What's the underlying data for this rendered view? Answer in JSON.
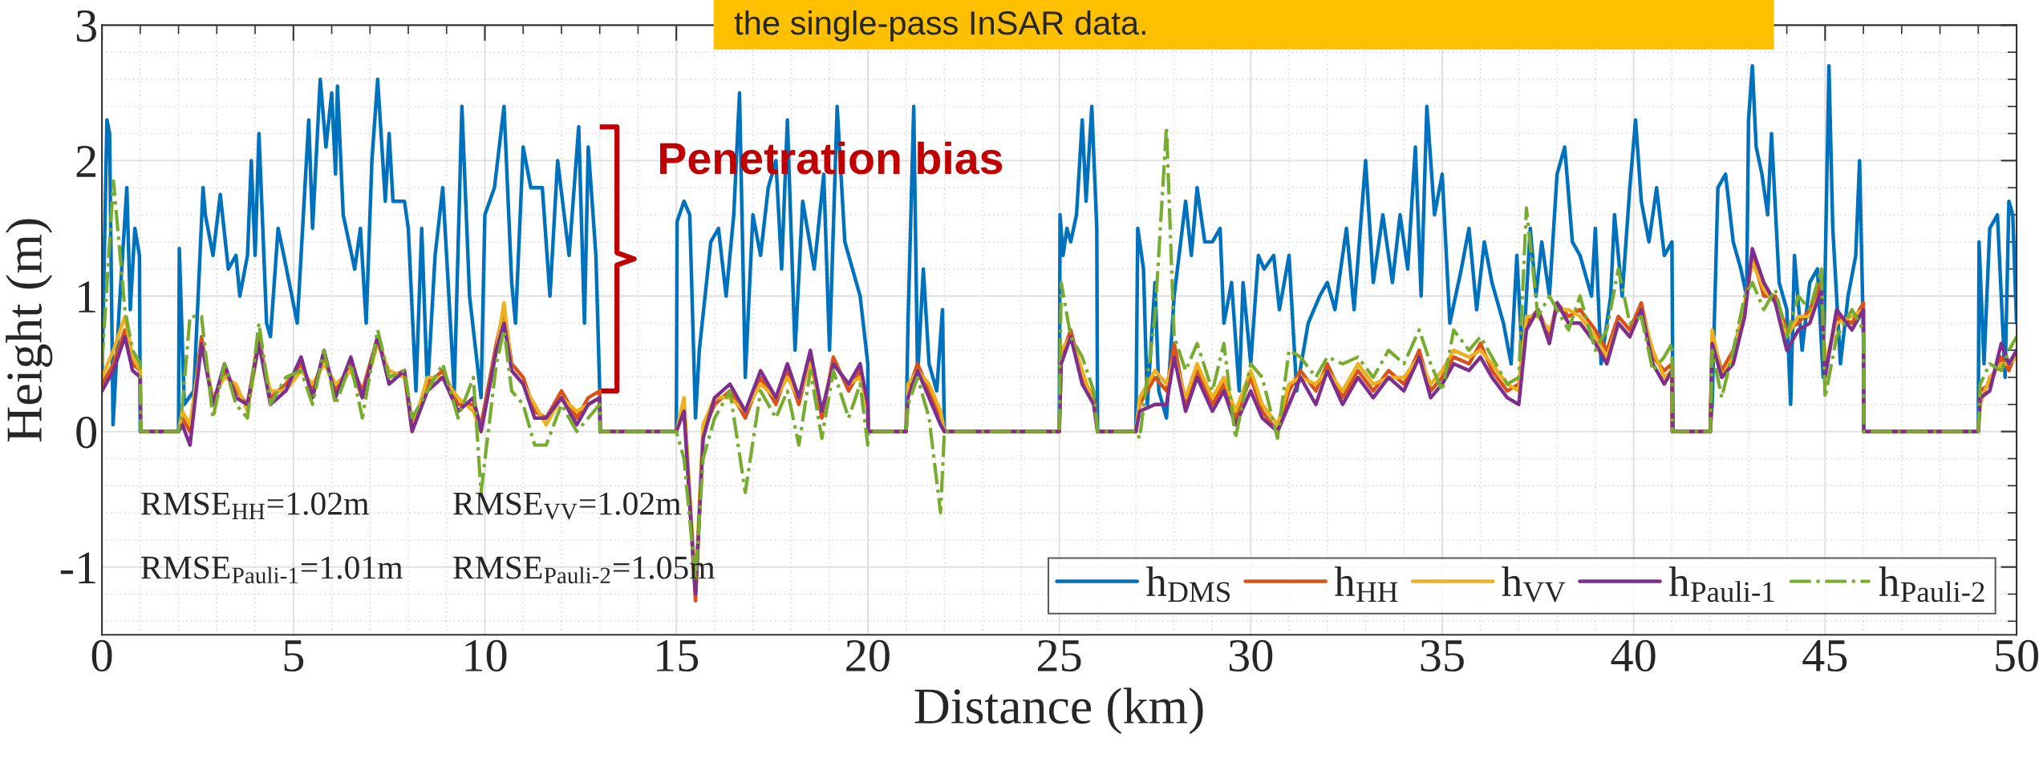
{
  "chart_data": {
    "type": "line",
    "xlabel": "Distance (km)",
    "ylabel": "Height (m)",
    "xlim": [
      0,
      50
    ],
    "ylim": [
      -1.5,
      3
    ],
    "xticks": [
      0,
      5,
      10,
      15,
      20,
      25,
      30,
      35,
      40,
      45,
      50
    ],
    "yticks": [
      {
        "value": -1,
        "label": "-1"
      },
      0,
      1,
      2,
      3
    ],
    "grid": true,
    "legend": "bottom right",
    "marker": "none",
    "annotations": [
      "the single-pass InSAR data.",
      "Penetration bias",
      "RMSE$_{HH}$=1.02m",
      "RMSE$_{VV}$=1.02m",
      "RMSE$_{Pauli-1}$=1.01m",
      "RMSE$_{Pauli-2}$=1.05m"
    ],
    "series": [
      {
        "name": "h$_{DMS}$",
        "color": "#0072bd",
        "line_style": "solid",
        "x": [
          0,
          0.13,
          0.2,
          0.29,
          0.45,
          0.65,
          0.74,
          0.86,
          0.98,
          1.0,
          2.0,
          2.02,
          2.15,
          2.4,
          2.64,
          2.7,
          2.9,
          3.09,
          3.3,
          3.5,
          3.6,
          3.8,
          3.9,
          4.0,
          4.1,
          4.3,
          4.4,
          4.6,
          4.75,
          5.1,
          5.4,
          5.5,
          5.7,
          5.85,
          6.0,
          6.1,
          6.15,
          6.3,
          6.6,
          6.75,
          6.9,
          7.05,
          7.2,
          7.4,
          7.5,
          7.6,
          7.9,
          8.0,
          8.2,
          8.35,
          8.5,
          8.7,
          8.9,
          9.2,
          9.4,
          9.6,
          9.9,
          10.0,
          10.25,
          10.5,
          10.7,
          10.8,
          11.0,
          11.2,
          11.5,
          11.7,
          11.9,
          12.2,
          12.45,
          12.6,
          12.7,
          12.9,
          13.0,
          13.01,
          15.0,
          15.02,
          15.2,
          15.35,
          15.5,
          15.6,
          15.9,
          16.1,
          16.3,
          16.5,
          16.65,
          16.8,
          17.0,
          17.2,
          17.4,
          17.6,
          17.75,
          17.9,
          18.1,
          18.3,
          18.6,
          18.85,
          19.0,
          19.2,
          19.4,
          19.6,
          19.8,
          20.0,
          20.01,
          21.0,
          21.05,
          21.2,
          21.3,
          21.45,
          21.6,
          21.8,
          21.95,
          22.0,
          25.0,
          25.02,
          25.1,
          25.2,
          25.3,
          25.45,
          25.6,
          25.7,
          25.85,
          25.98,
          26.0,
          27.0,
          27.05,
          27.2,
          27.3,
          27.5,
          27.6,
          27.8,
          28.0,
          28.3,
          28.45,
          28.6,
          28.8,
          29.0,
          29.2,
          29.3,
          29.5,
          29.7,
          29.8,
          30.0,
          30.2,
          30.35,
          30.6,
          30.75,
          31.0,
          31.2,
          31.5,
          31.8,
          32.0,
          32.2,
          32.5,
          32.7,
          33.0,
          33.2,
          33.45,
          33.7,
          33.9,
          34.1,
          34.3,
          34.45,
          34.6,
          34.8,
          35.0,
          35.2,
          35.5,
          35.7,
          35.9,
          36.1,
          36.3,
          36.6,
          36.8,
          36.95,
          37.1,
          37.3,
          37.45,
          37.6,
          37.8,
          38.0,
          38.2,
          38.4,
          38.6,
          38.9,
          39.0,
          39.15,
          39.4,
          39.5,
          39.7,
          39.9,
          40.05,
          40.2,
          40.4,
          40.6,
          40.8,
          41.0,
          41.02,
          41.03,
          42.0,
          42.05,
          42.2,
          42.4,
          42.6,
          42.8,
          42.95,
          43.0,
          43.1,
          43.2,
          43.35,
          43.5,
          43.6,
          43.8,
          44.0,
          44.1,
          44.2,
          44.4,
          44.6,
          44.8,
          44.95,
          45.1,
          45.2,
          45.4,
          45.6,
          45.8,
          45.9,
          46.0,
          46.01,
          49.0,
          49.02,
          49.15,
          49.3,
          49.5,
          49.7,
          49.8,
          49.9,
          50
        ],
        "values": [
          0.39,
          2.3,
          2.2,
          0.05,
          0.9,
          1.8,
          0.9,
          1.5,
          1.3,
          0,
          0,
          1.35,
          0.2,
          0.3,
          1.8,
          1.6,
          1.3,
          1.75,
          1.2,
          1.3,
          1.0,
          1.3,
          2.0,
          1.3,
          2.2,
          0.8,
          0.7,
          1.5,
          1.3,
          0.8,
          2.3,
          1.5,
          2.6,
          2.1,
          2.5,
          1.9,
          2.55,
          1.6,
          1.2,
          1.5,
          0.8,
          2.0,
          2.6,
          1.7,
          2.2,
          1.7,
          1.7,
          1.5,
          0.3,
          1.5,
          0.3,
          1.3,
          1.8,
          0.3,
          2.4,
          1.0,
          0.25,
          1.6,
          1.8,
          2.4,
          1.1,
          0.8,
          2.1,
          1.8,
          1.8,
          1.0,
          2.0,
          1.3,
          2.25,
          0.8,
          2.1,
          1.3,
          0.3,
          0,
          0,
          1.55,
          1.7,
          1.6,
          0.1,
          0.6,
          1.4,
          1.5,
          1.0,
          1.6,
          2.5,
          0.4,
          1.6,
          1.3,
          1.8,
          2.0,
          1.2,
          2.3,
          0.6,
          1.7,
          1.2,
          1.9,
          0.6,
          2.4,
          1.4,
          1.2,
          1.0,
          0.5,
          0,
          0,
          0.8,
          2.4,
          0.4,
          1.2,
          0.5,
          0.3,
          0.9,
          0,
          0,
          1.6,
          1.3,
          1.5,
          1.4,
          1.6,
          2.3,
          1.7,
          2.4,
          1.5,
          0,
          0,
          1.5,
          1.2,
          0.2,
          1.1,
          0.3,
          0.1,
          1.0,
          1.7,
          1.3,
          1.8,
          1.4,
          1.4,
          1.5,
          0.8,
          1.1,
          0.3,
          1.1,
          0.5,
          1.3,
          1.2,
          1.3,
          0.9,
          1.3,
          0.3,
          0.8,
          1.0,
          1.1,
          0.9,
          1.5,
          0.9,
          2.0,
          1.1,
          1.6,
          1.1,
          1.6,
          1.2,
          2.1,
          1.0,
          2.4,
          1.6,
          1.9,
          0.8,
          1.2,
          1.5,
          0.9,
          1.4,
          1.1,
          0.8,
          0.5,
          1.3,
          0.5,
          1.5,
          1.0,
          1.4,
          1.0,
          1.9,
          2.1,
          1.4,
          1.3,
          1.0,
          1.5,
          0.5,
          1.0,
          1.6,
          1.0,
          1.8,
          2.3,
          1.7,
          1.4,
          1.8,
          1.3,
          1.4,
          0.4,
          0,
          0,
          0.2,
          1.8,
          1.9,
          1.4,
          1.2,
          1.0,
          2.3,
          2.7,
          2.1,
          1.9,
          1.6,
          2.2,
          1.1,
          0.9,
          0.2,
          1.3,
          0.6,
          1.1,
          1.2,
          0.4,
          2.7,
          1.5,
          0.5,
          1.0,
          1.3,
          2.0,
          0.7,
          0,
          0,
          1.4,
          0.5,
          1.5,
          1.6,
          0.4,
          1.7,
          1.6,
          0.8
        ]
      },
      {
        "name": "h$_{HH}$",
        "color": "#d95319",
        "line_style": "solid",
        "x": [
          0,
          0.3,
          0.6,
          0.8,
          1.0,
          1.01,
          2.0,
          2.1,
          2.3,
          2.6,
          2.9,
          3.2,
          3.5,
          3.8,
          4.1,
          4.4,
          4.8,
          5.2,
          5.5,
          5.8,
          6.1,
          6.5,
          6.8,
          7.2,
          7.5,
          7.9,
          8.1,
          8.5,
          8.9,
          9.3,
          9.7,
          9.9,
          10.3,
          10.5,
          10.7,
          11.0,
          11.3,
          11.6,
          12.0,
          12.4,
          12.7,
          13.0,
          13.01,
          15.0,
          15.2,
          15.5,
          15.7,
          16.0,
          16.4,
          16.8,
          17.2,
          17.6,
          17.9,
          18.2,
          18.5,
          18.8,
          19.1,
          19.5,
          19.8,
          20.0,
          20.01,
          21.0,
          21.05,
          21.3,
          21.6,
          21.9,
          22.0,
          25.0,
          25.05,
          25.3,
          25.6,
          25.9,
          26.0,
          27.0,
          27.1,
          27.5,
          27.8,
          28.0,
          28.3,
          28.6,
          29.0,
          29.3,
          29.6,
          30.0,
          30.3,
          30.7,
          31.0,
          31.3,
          31.7,
          32.0,
          32.4,
          32.8,
          33.2,
          33.6,
          34.0,
          34.4,
          34.7,
          35.0,
          35.3,
          35.7,
          36.0,
          36.3,
          36.7,
          37.0,
          37.2,
          37.5,
          37.8,
          38.0,
          38.3,
          38.6,
          39.0,
          39.3,
          39.6,
          39.9,
          40.2,
          40.5,
          40.8,
          41.0,
          41.01,
          42.0,
          42.05,
          42.3,
          42.6,
          42.9,
          43.1,
          43.4,
          43.7,
          44.0,
          44.3,
          44.6,
          44.9,
          45.0,
          45.3,
          45.7,
          46.0,
          46.01,
          49.0,
          49.05,
          49.3,
          49.6,
          49.8,
          50
        ],
        "values": [
          0.35,
          0.5,
          0.75,
          0.5,
          0.45,
          0,
          0,
          0.1,
          0.0,
          0.7,
          0.2,
          0.45,
          0.3,
          0.2,
          0.7,
          0.25,
          0.35,
          0.5,
          0.3,
          0.55,
          0.3,
          0.5,
          0.3,
          0.7,
          0.4,
          0.45,
          0.05,
          0.35,
          0.45,
          0.2,
          0.2,
          0.05,
          0.65,
          0.9,
          0.5,
          0.4,
          0.15,
          0.1,
          0.3,
          0.1,
          0.25,
          0.3,
          0,
          0,
          0.2,
          -1.25,
          0.0,
          0.2,
          0.3,
          0.1,
          0.4,
          0.2,
          0.45,
          0.2,
          0.55,
          0.1,
          0.55,
          0.3,
          0.45,
          0.2,
          0,
          0,
          0.3,
          0.5,
          0.3,
          0.1,
          0,
          0,
          0.55,
          0.75,
          0.4,
          0.25,
          0,
          0,
          0.2,
          0.4,
          0.3,
          0.65,
          0.2,
          0.45,
          0.2,
          0.35,
          0.1,
          0.4,
          0.15,
          0.0,
          0.3,
          0.45,
          0.3,
          0.5,
          0.25,
          0.45,
          0.3,
          0.45,
          0.35,
          0.6,
          0.3,
          0.4,
          0.55,
          0.5,
          0.65,
          0.45,
          0.3,
          0.35,
          0.8,
          0.9,
          0.7,
          0.95,
          0.85,
          0.9,
          0.75,
          0.6,
          0.85,
          0.75,
          0.95,
          0.55,
          0.45,
          0.5,
          0,
          0,
          0.7,
          0.45,
          0.6,
          0.9,
          1.3,
          1.0,
          1.0,
          0.75,
          0.8,
          0.9,
          1.1,
          0.45,
          0.85,
          0.8,
          0.95,
          0,
          0,
          0.3,
          0.35,
          0.55,
          0.45,
          0.6
        ]
      },
      {
        "name": "h$_{VV}$",
        "color": "#edb120",
        "line_style": "solid",
        "x": [
          0,
          0.3,
          0.6,
          0.8,
          1.0,
          1.01,
          2.0,
          2.1,
          2.3,
          2.6,
          2.9,
          3.2,
          3.5,
          3.8,
          4.1,
          4.4,
          4.8,
          5.2,
          5.5,
          5.8,
          6.1,
          6.5,
          6.8,
          7.2,
          7.5,
          7.9,
          8.1,
          8.5,
          8.9,
          9.3,
          9.7,
          9.9,
          10.3,
          10.5,
          10.7,
          11.0,
          11.3,
          11.6,
          12.0,
          12.4,
          12.7,
          13.0,
          13.01,
          15.0,
          15.2,
          15.5,
          15.7,
          16.0,
          16.4,
          16.8,
          17.2,
          17.6,
          17.9,
          18.2,
          18.5,
          18.8,
          19.1,
          19.5,
          19.8,
          20.0,
          20.01,
          21.0,
          21.05,
          21.3,
          21.6,
          21.9,
          22.0,
          25.0,
          25.05,
          25.3,
          25.6,
          25.9,
          26.0,
          27.0,
          27.1,
          27.5,
          27.8,
          28.0,
          28.3,
          28.6,
          29.0,
          29.3,
          29.6,
          30.0,
          30.3,
          30.7,
          31.0,
          31.3,
          31.7,
          32.0,
          32.4,
          32.8,
          33.2,
          33.6,
          34.0,
          34.4,
          34.7,
          35.0,
          35.3,
          35.7,
          36.0,
          36.3,
          36.7,
          37.0,
          37.2,
          37.5,
          37.8,
          38.0,
          38.3,
          38.6,
          39.0,
          39.3,
          39.6,
          39.9,
          40.2,
          40.5,
          40.8,
          41.0,
          41.01,
          42.0,
          42.05,
          42.3,
          42.6,
          42.9,
          43.1,
          43.4,
          43.7,
          44.0,
          44.3,
          44.6,
          44.9,
          45.0,
          45.3,
          45.7,
          46.0,
          46.01,
          49.0,
          49.05,
          49.3,
          49.6,
          49.8,
          50
        ],
        "values": [
          0.4,
          0.6,
          0.85,
          0.55,
          0.45,
          0,
          0,
          0.15,
          0.05,
          0.65,
          0.25,
          0.4,
          0.35,
          0.15,
          0.65,
          0.3,
          0.3,
          0.45,
          0.35,
          0.5,
          0.35,
          0.45,
          0.25,
          0.65,
          0.45,
          0.4,
          0.0,
          0.4,
          0.4,
          0.25,
          0.15,
          0.0,
          0.6,
          0.95,
          0.45,
          0.35,
          0.2,
          0.05,
          0.25,
          0.15,
          0.2,
          0.25,
          0,
          0,
          0.25,
          -1.15,
          0.05,
          0.25,
          0.25,
          0.15,
          0.35,
          0.25,
          0.4,
          0.25,
          0.5,
          0.15,
          0.5,
          0.35,
          0.4,
          0.15,
          0,
          0,
          0.35,
          0.45,
          0.35,
          0.15,
          0,
          0,
          0.6,
          0.7,
          0.45,
          0.2,
          0,
          0,
          0.25,
          0.45,
          0.35,
          0.55,
          0.25,
          0.5,
          0.25,
          0.4,
          0.15,
          0.45,
          0.2,
          0.05,
          0.35,
          0.4,
          0.35,
          0.45,
          0.3,
          0.5,
          0.35,
          0.4,
          0.4,
          0.55,
          0.35,
          0.45,
          0.6,
          0.55,
          0.6,
          0.5,
          0.35,
          0.3,
          0.85,
          0.85,
          0.75,
          0.9,
          0.9,
          0.85,
          0.7,
          0.55,
          0.8,
          0.7,
          0.9,
          0.6,
          0.4,
          0.45,
          0,
          0,
          0.75,
          0.4,
          0.55,
          0.95,
          1.25,
          1.05,
          0.95,
          0.7,
          0.85,
          0.85,
          1.05,
          0.5,
          0.8,
          0.85,
          0.9,
          0,
          0,
          0.2,
          0.4,
          0.5,
          0.5,
          0.55
        ]
      },
      {
        "name": "h$_{Pauli-1}$",
        "color": "#7e2f8e",
        "line_style": "solid",
        "x": [
          0,
          0.3,
          0.6,
          0.8,
          1.0,
          1.01,
          2.0,
          2.1,
          2.3,
          2.6,
          2.9,
          3.2,
          3.5,
          3.8,
          4.1,
          4.4,
          4.8,
          5.2,
          5.5,
          5.8,
          6.1,
          6.5,
          6.8,
          7.2,
          7.5,
          7.9,
          8.1,
          8.5,
          8.9,
          9.3,
          9.7,
          9.9,
          10.3,
          10.5,
          10.7,
          11.0,
          11.3,
          11.6,
          12.0,
          12.4,
          12.7,
          13.0,
          13.01,
          15.0,
          15.2,
          15.5,
          15.7,
          16.0,
          16.4,
          16.8,
          17.2,
          17.6,
          17.9,
          18.2,
          18.5,
          18.8,
          19.1,
          19.5,
          19.8,
          20.0,
          20.01,
          21.0,
          21.05,
          21.3,
          21.6,
          21.9,
          22.0,
          25.0,
          25.05,
          25.3,
          25.6,
          25.9,
          26.0,
          27.0,
          27.1,
          27.5,
          27.8,
          28.0,
          28.3,
          28.6,
          29.0,
          29.3,
          29.6,
          30.0,
          30.3,
          30.7,
          31.0,
          31.3,
          31.7,
          32.0,
          32.4,
          32.8,
          33.2,
          33.6,
          34.0,
          34.4,
          34.7,
          35.0,
          35.3,
          35.7,
          36.0,
          36.3,
          36.7,
          37.0,
          37.2,
          37.5,
          37.8,
          38.0,
          38.3,
          38.6,
          39.0,
          39.3,
          39.6,
          39.9,
          40.2,
          40.5,
          40.8,
          41.0,
          41.01,
          42.0,
          42.05,
          42.3,
          42.6,
          42.9,
          43.1,
          43.4,
          43.7,
          44.0,
          44.3,
          44.6,
          44.9,
          45.0,
          45.3,
          45.7,
          46.0,
          46.01,
          49.0,
          49.05,
          49.3,
          49.6,
          49.8,
          50
        ],
        "values": [
          0.3,
          0.45,
          0.7,
          0.45,
          0.4,
          0,
          0,
          0.05,
          -0.1,
          0.65,
          0.2,
          0.5,
          0.25,
          0.2,
          0.65,
          0.2,
          0.3,
          0.55,
          0.25,
          0.6,
          0.25,
          0.55,
          0.25,
          0.7,
          0.35,
          0.45,
          0.0,
          0.3,
          0.4,
          0.15,
          0.25,
          0.0,
          0.6,
          0.8,
          0.45,
          0.35,
          0.1,
          0.1,
          0.25,
          0.05,
          0.2,
          0.25,
          0,
          0,
          0.15,
          -1.2,
          -0.05,
          0.25,
          0.35,
          0.15,
          0.45,
          0.25,
          0.5,
          0.25,
          0.6,
          0.15,
          0.5,
          0.35,
          0.5,
          0.2,
          0,
          0,
          0.25,
          0.45,
          0.25,
          0.05,
          0,
          0,
          0.5,
          0.7,
          0.35,
          0.2,
          0,
          0,
          0.15,
          0.2,
          0.2,
          0.55,
          0.15,
          0.4,
          0.15,
          0.3,
          0.05,
          0.3,
          0.1,
          0.0,
          0.2,
          0.4,
          0.2,
          0.45,
          0.2,
          0.4,
          0.25,
          0.4,
          0.3,
          0.55,
          0.25,
          0.35,
          0.5,
          0.45,
          0.55,
          0.4,
          0.25,
          0.2,
          0.75,
          0.9,
          0.65,
          0.95,
          0.8,
          0.8,
          0.65,
          0.5,
          0.8,
          0.7,
          0.9,
          0.5,
          0.35,
          0.45,
          0,
          0,
          0.65,
          0.4,
          0.5,
          0.85,
          1.35,
          1.1,
          0.95,
          0.6,
          0.75,
          0.8,
          1.05,
          0.4,
          0.9,
          0.75,
          0.9,
          0,
          0,
          0.25,
          0.3,
          0.65,
          0.5,
          0.6
        ]
      },
      {
        "name": "h$_{Pauli-2}$",
        "color": "#77ac30",
        "line_style": "dashdot",
        "x": [
          0,
          0.3,
          0.6,
          0.8,
          1.0,
          1.01,
          2.0,
          2.1,
          2.3,
          2.6,
          2.9,
          3.2,
          3.5,
          3.8,
          4.1,
          4.4,
          4.8,
          5.2,
          5.5,
          5.8,
          6.1,
          6.5,
          6.8,
          7.2,
          7.5,
          7.9,
          8.1,
          8.5,
          8.9,
          9.3,
          9.7,
          9.9,
          10.3,
          10.5,
          10.7,
          11.0,
          11.3,
          11.6,
          12.0,
          12.4,
          12.7,
          13.0,
          13.01,
          15.0,
          15.2,
          15.5,
          15.7,
          16.0,
          16.4,
          16.8,
          17.2,
          17.6,
          17.9,
          18.2,
          18.5,
          18.8,
          19.1,
          19.5,
          19.8,
          20.0,
          20.01,
          21.0,
          21.05,
          21.3,
          21.6,
          21.9,
          22.0,
          25.0,
          25.05,
          25.3,
          25.6,
          25.9,
          26.0,
          27.0,
          27.1,
          27.5,
          27.8,
          28.0,
          28.3,
          28.6,
          29.0,
          29.3,
          29.6,
          30.0,
          30.3,
          30.7,
          31.0,
          31.3,
          31.7,
          32.0,
          32.4,
          32.8,
          33.2,
          33.6,
          34.0,
          34.4,
          34.7,
          35.0,
          35.3,
          35.7,
          36.0,
          36.3,
          36.7,
          37.0,
          37.2,
          37.5,
          37.8,
          38.0,
          38.3,
          38.6,
          39.0,
          39.3,
          39.6,
          39.9,
          40.2,
          40.5,
          40.8,
          41.0,
          41.01,
          42.0,
          42.05,
          42.3,
          42.6,
          42.9,
          43.1,
          43.4,
          43.7,
          44.0,
          44.3,
          44.6,
          44.9,
          45.0,
          45.3,
          45.7,
          46.0,
          46.01,
          49.0,
          49.05,
          49.3,
          49.6,
          49.8,
          50
        ],
        "values": [
          0.5,
          1.85,
          0.9,
          0.6,
          0.5,
          0,
          0,
          0.2,
          0.85,
          0.85,
          0.1,
          0.5,
          0.2,
          0.1,
          0.8,
          0.2,
          0.4,
          0.45,
          0.2,
          0.6,
          0.2,
          0.5,
          0.1,
          0.75,
          0.4,
          0.45,
          0.1,
          0.3,
          0.5,
          0.1,
          0.4,
          -0.45,
          0.5,
          0.75,
          0.3,
          0.2,
          -0.1,
          -0.1,
          0.2,
          0.0,
          0.1,
          0.2,
          0,
          0,
          -0.2,
          -1.1,
          -0.2,
          0.1,
          0.3,
          -0.45,
          0.3,
          0.1,
          0.3,
          -0.1,
          0.45,
          -0.05,
          0.45,
          0.1,
          0.35,
          -0.1,
          0,
          0,
          0.2,
          0.4,
          0.1,
          -0.6,
          0,
          0,
          1.1,
          0.7,
          0.55,
          0.3,
          0,
          0,
          -0.05,
          0.85,
          2.25,
          0.7,
          0.45,
          0.65,
          0.3,
          0.65,
          -0.05,
          0.5,
          0.4,
          -0.05,
          0.6,
          0.55,
          0.4,
          0.55,
          0.5,
          0.55,
          0.4,
          0.6,
          0.5,
          0.75,
          0.5,
          0.3,
          0.75,
          0.6,
          0.7,
          0.55,
          0.35,
          0.4,
          1.65,
          0.85,
          1.0,
          0.9,
          0.75,
          1.0,
          0.6,
          0.75,
          1.2,
          0.8,
          0.85,
          0.45,
          0.55,
          0.65,
          0,
          0,
          0.6,
          0.25,
          0.6,
          1.0,
          1.1,
          0.9,
          1.05,
          0.7,
          1.0,
          0.9,
          1.2,
          0.25,
          0.7,
          0.9,
          0.75,
          0,
          0,
          0.35,
          0.5,
          0.45,
          0.6,
          0.7
        ]
      }
    ]
  }
}
